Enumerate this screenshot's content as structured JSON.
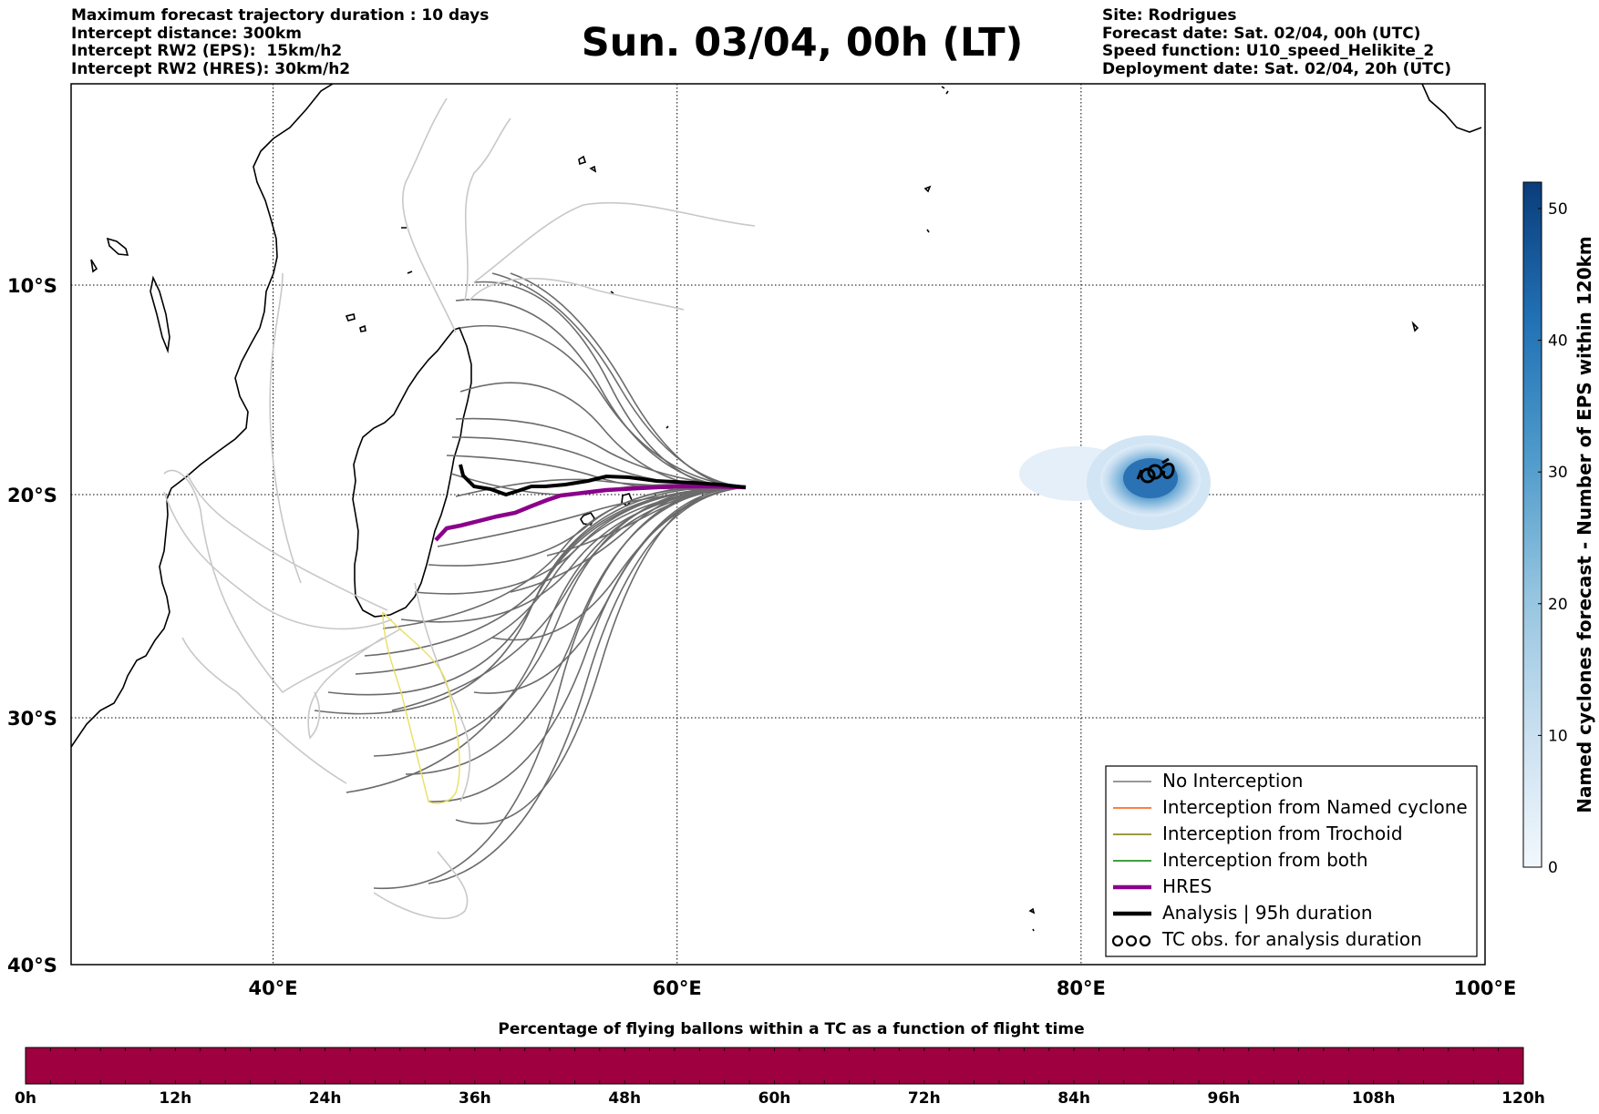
{
  "header_left": [
    "Maximum forecast trajectory duration : 10 days",
    "Intercept distance: 300km",
    "Intercept RW2 (EPS):  15km/h2",
    "Intercept RW2 (HRES): 30km/h2"
  ],
  "title": "Sun. 03/04, 00h (LT)",
  "header_right": [
    "Site: Rodrigues",
    "Forecast date: Sat. 02/04, 00h (UTC)",
    "Speed function: U10_speed_Helikite_2",
    "Deployment date: Sat. 02/04, 20h (UTC)"
  ],
  "map": {
    "lon_labels": [
      "40°E",
      "60°E",
      "80°E",
      "100°E"
    ],
    "lat_labels": [
      "10°S",
      "20°S",
      "30°S",
      "40°S"
    ],
    "lon_range": [
      30,
      100
    ],
    "lat_range": [
      -40,
      -0.5
    ],
    "launch_site": {
      "lon": 63.4,
      "lat": -19.7
    },
    "cyclone_obs_position": {
      "lon": 83.8,
      "lat": -19.2
    }
  },
  "legend": [
    {
      "label": "No Interception",
      "color": "#777777",
      "style": "thin"
    },
    {
      "label": "Interception from Named cyclone",
      "color": "#ff5500",
      "style": "thin"
    },
    {
      "label": "Interception from Trochoid",
      "color": "#7a7a00",
      "style": "thin"
    },
    {
      "label": "Interception from both",
      "color": "#008000",
      "style": "thin"
    },
    {
      "label": "HRES",
      "color": "#8b008b",
      "style": "thick"
    },
    {
      "label": "Analysis | 95h duration",
      "color": "#000000",
      "style": "thick"
    },
    {
      "label": "TC obs. for analysis duration",
      "color": "#000000",
      "style": "cyclone"
    }
  ],
  "colorbar": {
    "label": "Named cyclones forecast - Number of EPS within 120km",
    "ticks": [
      "0",
      "10",
      "20",
      "30",
      "40",
      "50"
    ],
    "min": 0,
    "max": 52
  },
  "timeline": {
    "title": "Percentage of flying ballons within a TC as a function of flight time",
    "ticks": [
      "0h",
      "12h",
      "24h",
      "36h",
      "48h",
      "60h",
      "72h",
      "84h",
      "96h",
      "108h",
      "120h"
    ],
    "color": "#9e0040"
  }
}
